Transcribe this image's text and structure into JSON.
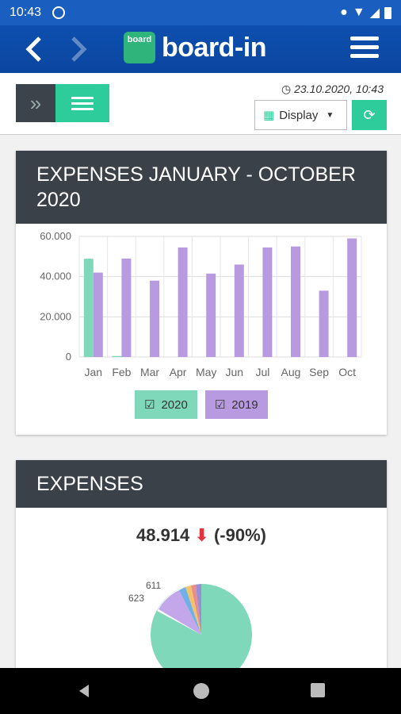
{
  "status": {
    "time": "10:43"
  },
  "app": {
    "brand": "board-in",
    "badge": "board"
  },
  "toolbar": {
    "timestamp": "23.10.2020, 10:43",
    "display_label": "Display"
  },
  "card1": {
    "title": "EXPENSES JANUARY - OCTOBER 2020"
  },
  "chart_data": {
    "type": "bar",
    "categories": [
      "Jan",
      "Feb",
      "Mar",
      "Apr",
      "May",
      "Jun",
      "Jul",
      "Aug",
      "Sep",
      "Oct"
    ],
    "series": [
      {
        "name": "2020",
        "color": "#7fd8b9",
        "values": [
          48914,
          500,
          null,
          null,
          null,
          null,
          null,
          null,
          null,
          null
        ]
      },
      {
        "name": "2019",
        "color": "#b89ae0",
        "values": [
          42000,
          49000,
          38000,
          54500,
          41500,
          46000,
          54500,
          55000,
          33000,
          59000
        ]
      }
    ],
    "ylim": [
      0,
      60000
    ],
    "yticks": [
      "0",
      "20.000",
      "40.000",
      "60.000"
    ],
    "grid": true,
    "legend": "bottom"
  },
  "card2": {
    "title": "EXPENSES",
    "value": "48.914",
    "change": "(-90%)"
  },
  "pie_data": {
    "labels": [
      "611",
      "623"
    ]
  }
}
